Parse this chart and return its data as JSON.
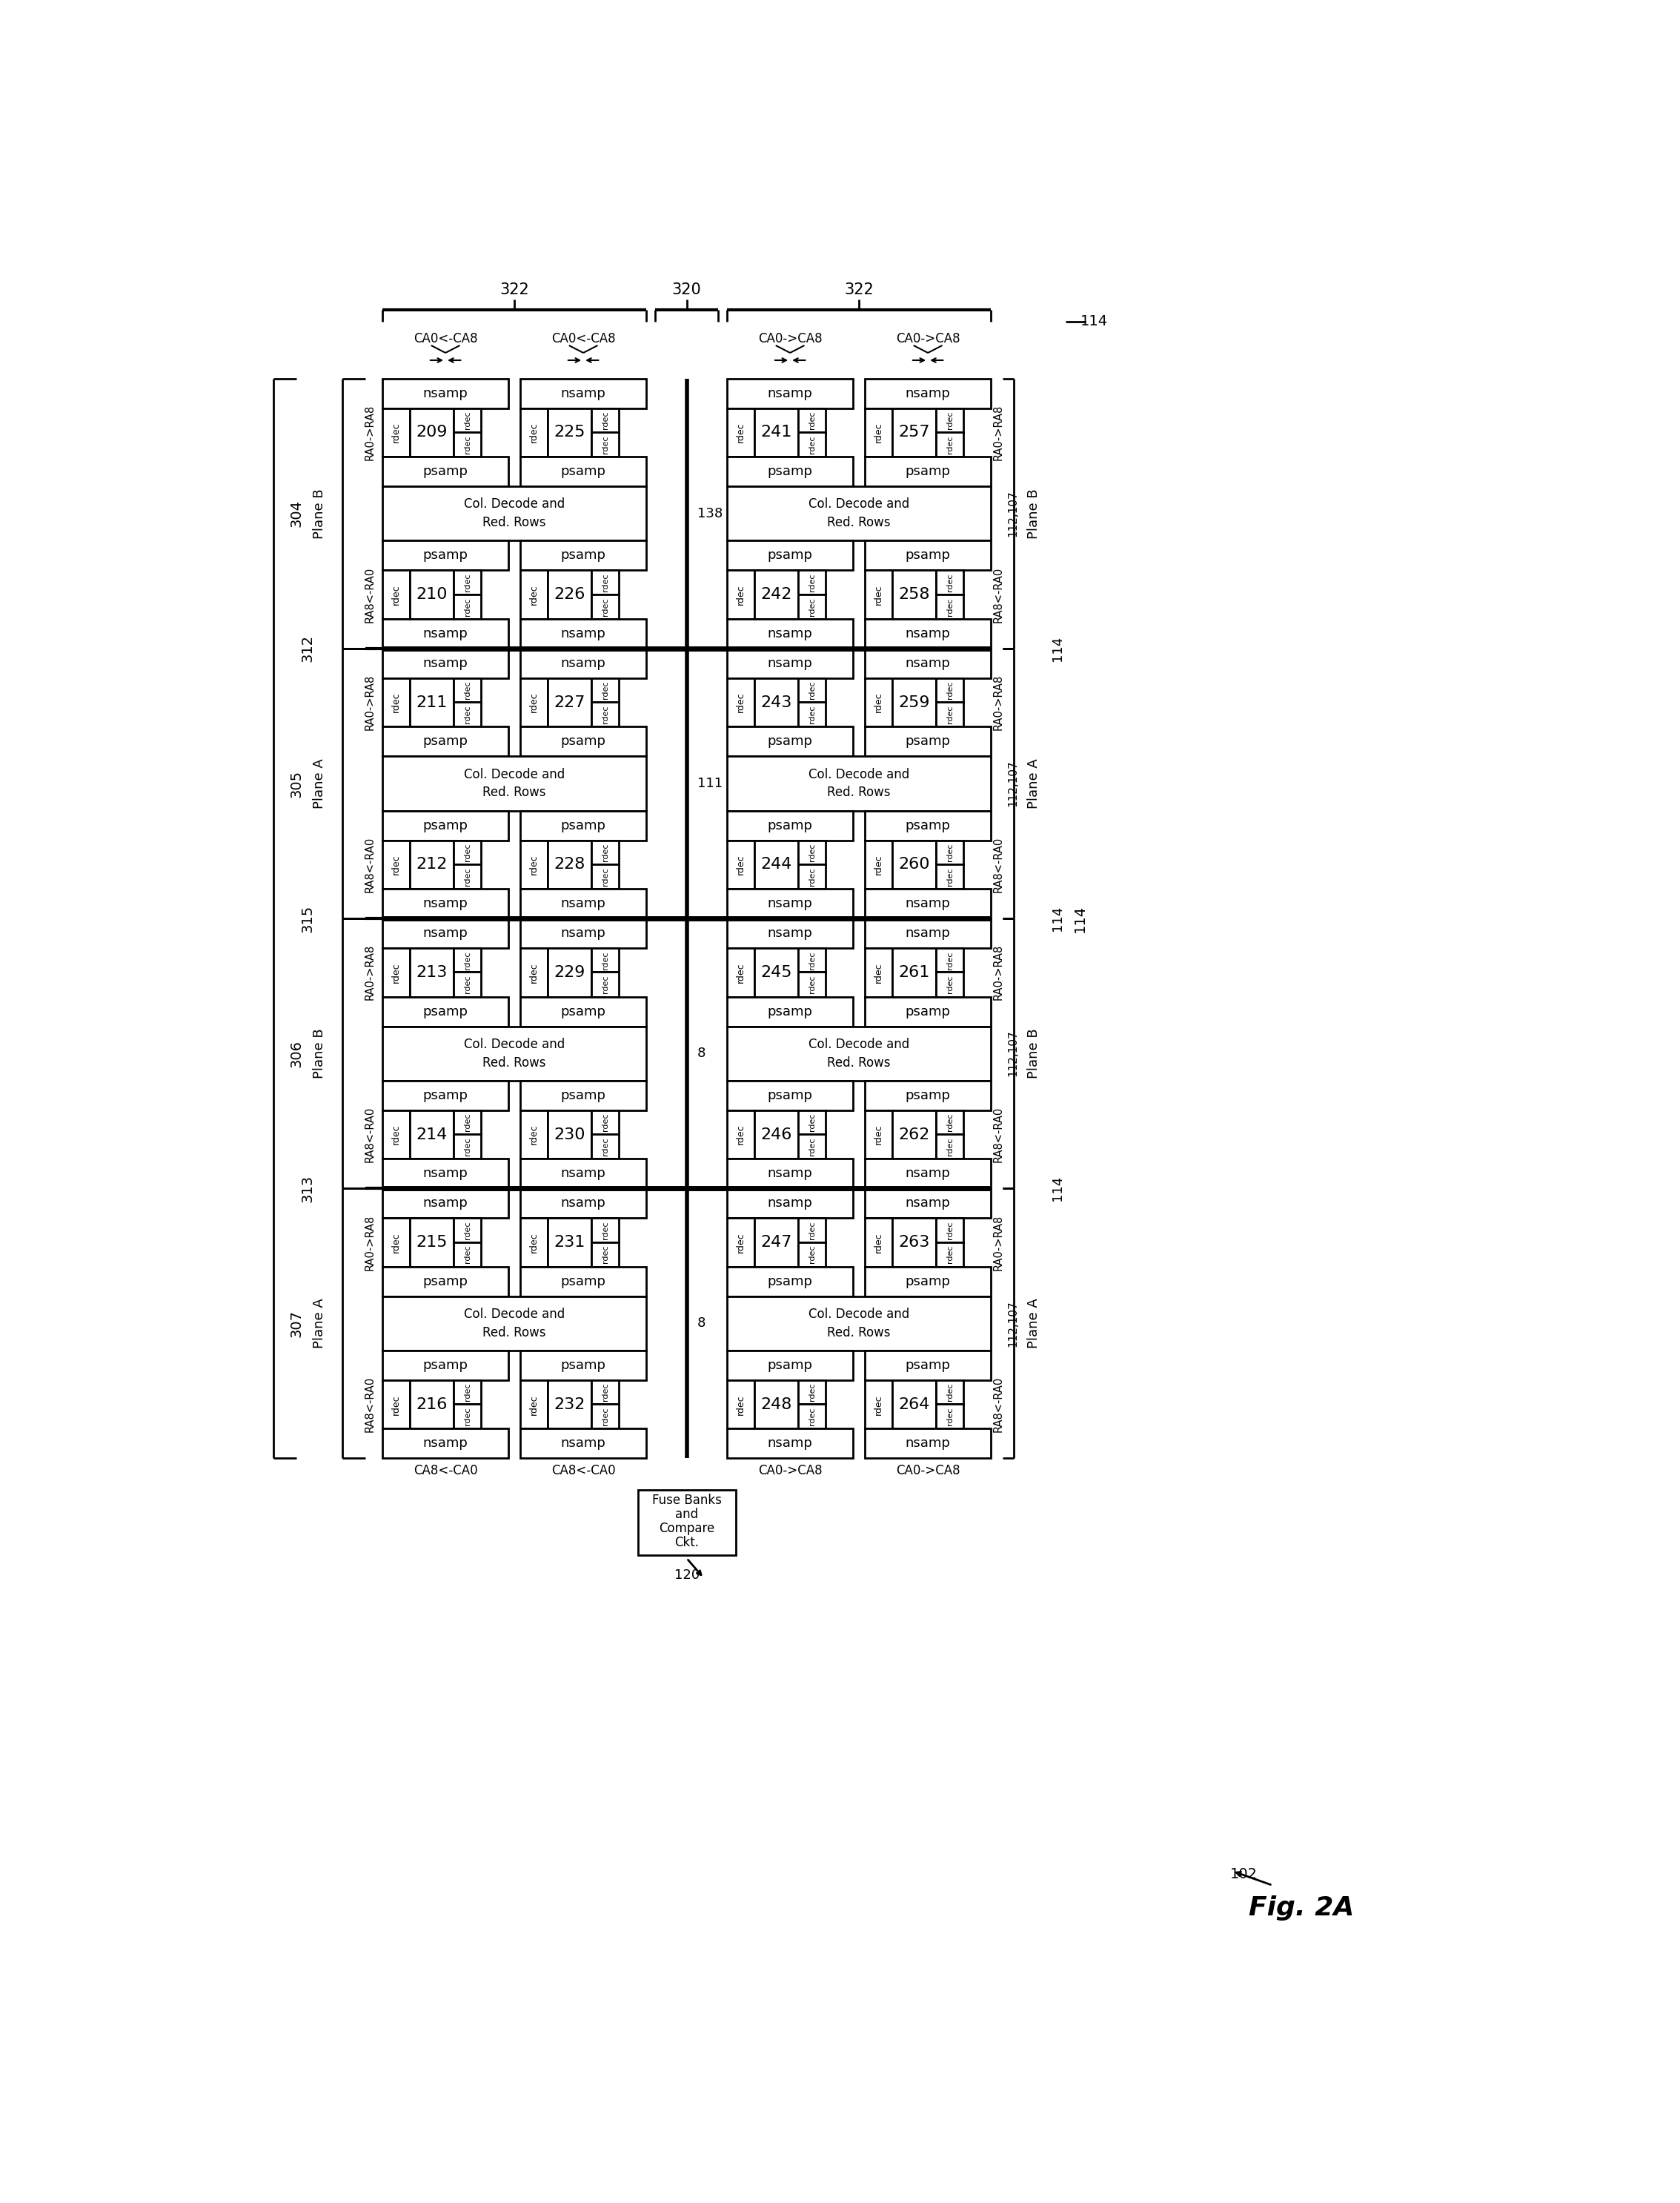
{
  "bg_color": "#ffffff",
  "col_signals_top": [
    "CA0<-CA8",
    "CA0<-CA8",
    "CA0->CA8",
    "CA0->CA8"
  ],
  "col_signals_bot": [
    "CA8<-CA0",
    "CA8<-CA0",
    "CA0->CA8",
    "CA0->CA8"
  ],
  "left_bracket_labels": [
    "304",
    "305",
    "306",
    "307"
  ],
  "left_divider_labels": [
    "312",
    "315",
    "313"
  ],
  "left_plane_labels": [
    "Plane B",
    "Plane A",
    "Plane B",
    "Plane A"
  ],
  "right_plane_labels": [
    "Plane B",
    "Plane A",
    "Plane B",
    "Plane A"
  ],
  "right_bracket_labels": [
    "112,107",
    "112,107",
    "112,107",
    "112,107"
  ],
  "right_outer_label": "114",
  "ra_sigs_left_top": [
    "RA0->RA8",
    "RA0->RA8",
    "RA0->RA8",
    "RA0->RA8"
  ],
  "ra_sigs_left_bot": [
    "RA8<-RA0",
    "RA8<-RA0",
    "RA8<-RA0",
    "RA8<-RA0"
  ],
  "ra_sigs_right_top": [
    "RA0->RA8",
    "RA0->RA8",
    "RA0->RA8",
    "RA0->RA8"
  ],
  "ra_sigs_right_bot": [
    "RA8<-RA0",
    "RA8<-RA0",
    "RA8<-RA0",
    "RA8<-RA0"
  ],
  "sections": [
    {
      "row_a": [
        209,
        225,
        241,
        257
      ],
      "row_b": [
        210,
        226,
        242,
        258
      ]
    },
    {
      "row_a": [
        211,
        227,
        243,
        259
      ],
      "row_b": [
        212,
        228,
        244,
        260
      ]
    },
    {
      "row_a": [
        213,
        229,
        245,
        261
      ],
      "row_b": [
        214,
        230,
        246,
        262
      ]
    },
    {
      "row_a": [
        215,
        231,
        247,
        263
      ],
      "row_b": [
        216,
        232,
        248,
        264
      ]
    }
  ],
  "bus_nums": [
    "138",
    "111",
    "8",
    "8"
  ],
  "top_bracket_322_left": "322",
  "top_bracket_320": "320",
  "top_bracket_322_right": "322",
  "top_114": "114",
  "fuse_box_label": "Fuse Banks\nand\nCompare\nCkt.",
  "fuse_box_num": "120",
  "fig_label": "Fig. 2A",
  "fig_num": "102"
}
